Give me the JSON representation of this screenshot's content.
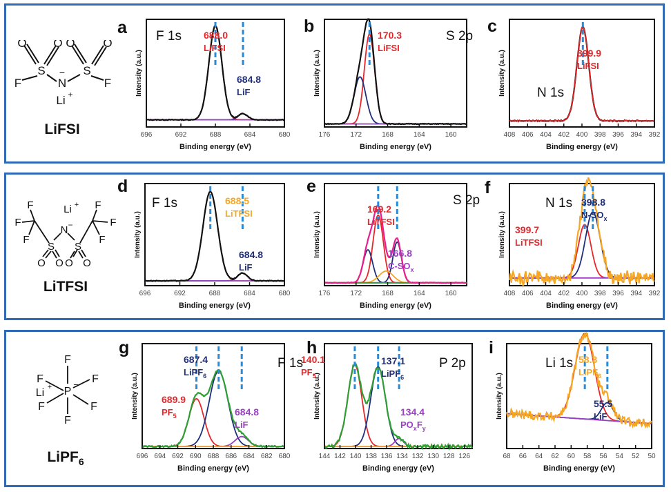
{
  "colors": {
    "border": "#2f6ab5",
    "red": "#e8262a",
    "navy": "#1f2f7a",
    "orange": "#f5a623",
    "purple": "#9b3fc4",
    "magenta": "#e91e8c",
    "green": "#2e9e35",
    "black": "#111111",
    "marker": "#2b8ad6"
  },
  "rows": [
    {
      "salt": {
        "name": "LiFSI",
        "atoms": [
          "O",
          "O",
          "O",
          "O",
          "S",
          "S",
          "N",
          "−",
          "F",
          "F",
          "Li",
          "+"
        ]
      }
    },
    {
      "salt": {
        "name": "LiTFSI",
        "atoms": [
          "Li",
          "+",
          "F",
          "F",
          "F",
          "F",
          "F",
          "F",
          "N",
          "−",
          "S",
          "S",
          "O",
          "O",
          "O",
          "O"
        ]
      }
    },
    {
      "salt": {
        "name": "LiPF",
        "sub": "6",
        "atoms": [
          "F",
          "F",
          "F",
          "F",
          "F",
          "F",
          "Li",
          "+",
          "P",
          "−"
        ]
      }
    }
  ],
  "chart_data": [
    {
      "id": "a",
      "type": "line",
      "title": "F 1s",
      "xlabel": "Binding energy (eV)",
      "ylabel": "Intensity (a.u.)",
      "xlim": [
        696,
        680
      ],
      "xticks": [
        696,
        692,
        688,
        684,
        680
      ],
      "peaks": [
        {
          "center": 688.0,
          "label": "688.0",
          "species": "LiFSI",
          "color": "red"
        },
        {
          "center": 684.8,
          "label": "684.8",
          "species": "LiF",
          "color": "navy"
        }
      ]
    },
    {
      "id": "b",
      "type": "line",
      "title": "S 2p",
      "xlabel": "Binding energy (eV)",
      "ylabel": "Intensity (a.u.)",
      "xlim": [
        176,
        158
      ],
      "xticks": [
        176,
        172,
        168,
        164,
        160
      ],
      "peaks": [
        {
          "center": 170.3,
          "label": "170.3",
          "species": "LiFSI",
          "color": "red"
        }
      ]
    },
    {
      "id": "c",
      "type": "line",
      "title": "N 1s",
      "xlabel": "Binding energy (eV)",
      "ylabel": "Intensity (a.u.)",
      "xlim": [
        408,
        392
      ],
      "xticks": [
        408,
        406,
        404,
        402,
        400,
        398,
        396,
        394,
        392
      ],
      "peaks": [
        {
          "center": 399.9,
          "label": "399.9",
          "species": "LiFSI",
          "color": "red"
        }
      ]
    },
    {
      "id": "d",
      "type": "line",
      "title": "F 1s",
      "xlabel": "Binding energy (eV)",
      "ylabel": "Intensity (a.u.)",
      "xlim": [
        696,
        680
      ],
      "xticks": [
        696,
        692,
        688,
        684,
        680
      ],
      "peaks": [
        {
          "center": 688.5,
          "label": "688.5",
          "species": "LiTFSI",
          "color": "orange"
        },
        {
          "center": 684.8,
          "label": "684.8",
          "species": "LiF",
          "color": "navy"
        }
      ]
    },
    {
      "id": "e",
      "type": "line",
      "title": "S 2p",
      "xlabel": "Binding energy (eV)",
      "ylabel": "Intensity (a.u.)",
      "xlim": [
        176,
        158
      ],
      "xticks": [
        176,
        172,
        168,
        164,
        160
      ],
      "peaks": [
        {
          "center": 169.2,
          "label": "169.2",
          "species": "LiTFSI",
          "color": "red"
        },
        {
          "center": 166.8,
          "label": "166.8",
          "species": "C-SO",
          "sub": "x",
          "color": "purple"
        }
      ]
    },
    {
      "id": "f",
      "type": "line",
      "title": "N 1s",
      "xlabel": "Binding energy (eV)",
      "ylabel": "Intensity (a.u.)",
      "xlim": [
        408,
        392
      ],
      "xticks": [
        408,
        406,
        404,
        402,
        400,
        398,
        396,
        394,
        392
      ],
      "peaks": [
        {
          "center": 399.7,
          "label": "399.7",
          "species": "LiTFSI",
          "color": "red"
        },
        {
          "center": 398.8,
          "label": "398.8",
          "species": "N-SO",
          "sub": "x",
          "color": "navy"
        }
      ]
    },
    {
      "id": "g",
      "type": "line",
      "title": "F 1s",
      "xlabel": "Binding energy (eV)",
      "ylabel": "Intensity (a.u.)",
      "xlim": [
        696,
        680
      ],
      "xticks": [
        696,
        694,
        692,
        690,
        688,
        686,
        684,
        682,
        680
      ],
      "peaks": [
        {
          "center": 689.9,
          "label": "689.9",
          "species": "PF",
          "sub": "5",
          "color": "red"
        },
        {
          "center": 687.4,
          "label": "687.4",
          "species": "LiPF",
          "sub": "6",
          "color": "navy"
        },
        {
          "center": 684.8,
          "label": "684.8",
          "species": "LiF",
          "color": "purple"
        }
      ]
    },
    {
      "id": "h",
      "type": "line",
      "title": "P 2p",
      "xlabel": "Binding energy (eV)",
      "ylabel": "Intensity (a.u.)",
      "xlim": [
        144,
        125
      ],
      "xticks": [
        144,
        142,
        140,
        138,
        136,
        134,
        132,
        130,
        128,
        126
      ],
      "peaks": [
        {
          "center": 140.1,
          "label": "140.1",
          "species": "PF",
          "sub": "5",
          "color": "red"
        },
        {
          "center": 137.1,
          "label": "137.1",
          "species": "LiPF",
          "sub": "6",
          "color": "navy"
        },
        {
          "center": 134.4,
          "label": "134.4",
          "species": "PO",
          "sub": "x",
          "species2": "F",
          "sub2": "y",
          "color": "purple"
        }
      ]
    },
    {
      "id": "i",
      "type": "line",
      "title": "Li 1s",
      "xlabel": "Binding energy (eV)",
      "ylabel": "Intensity (a.u.)",
      "xlim": [
        68,
        50
      ],
      "xticks": [
        68,
        66,
        64,
        62,
        60,
        58,
        56,
        54,
        52,
        50
      ],
      "peaks": [
        {
          "center": 58.3,
          "label": "58.3",
          "species": "LiPF",
          "sub": "6",
          "color": "orange"
        },
        {
          "center": 55.5,
          "label": "55.5",
          "species": "LiF",
          "color": "navy"
        }
      ]
    }
  ]
}
